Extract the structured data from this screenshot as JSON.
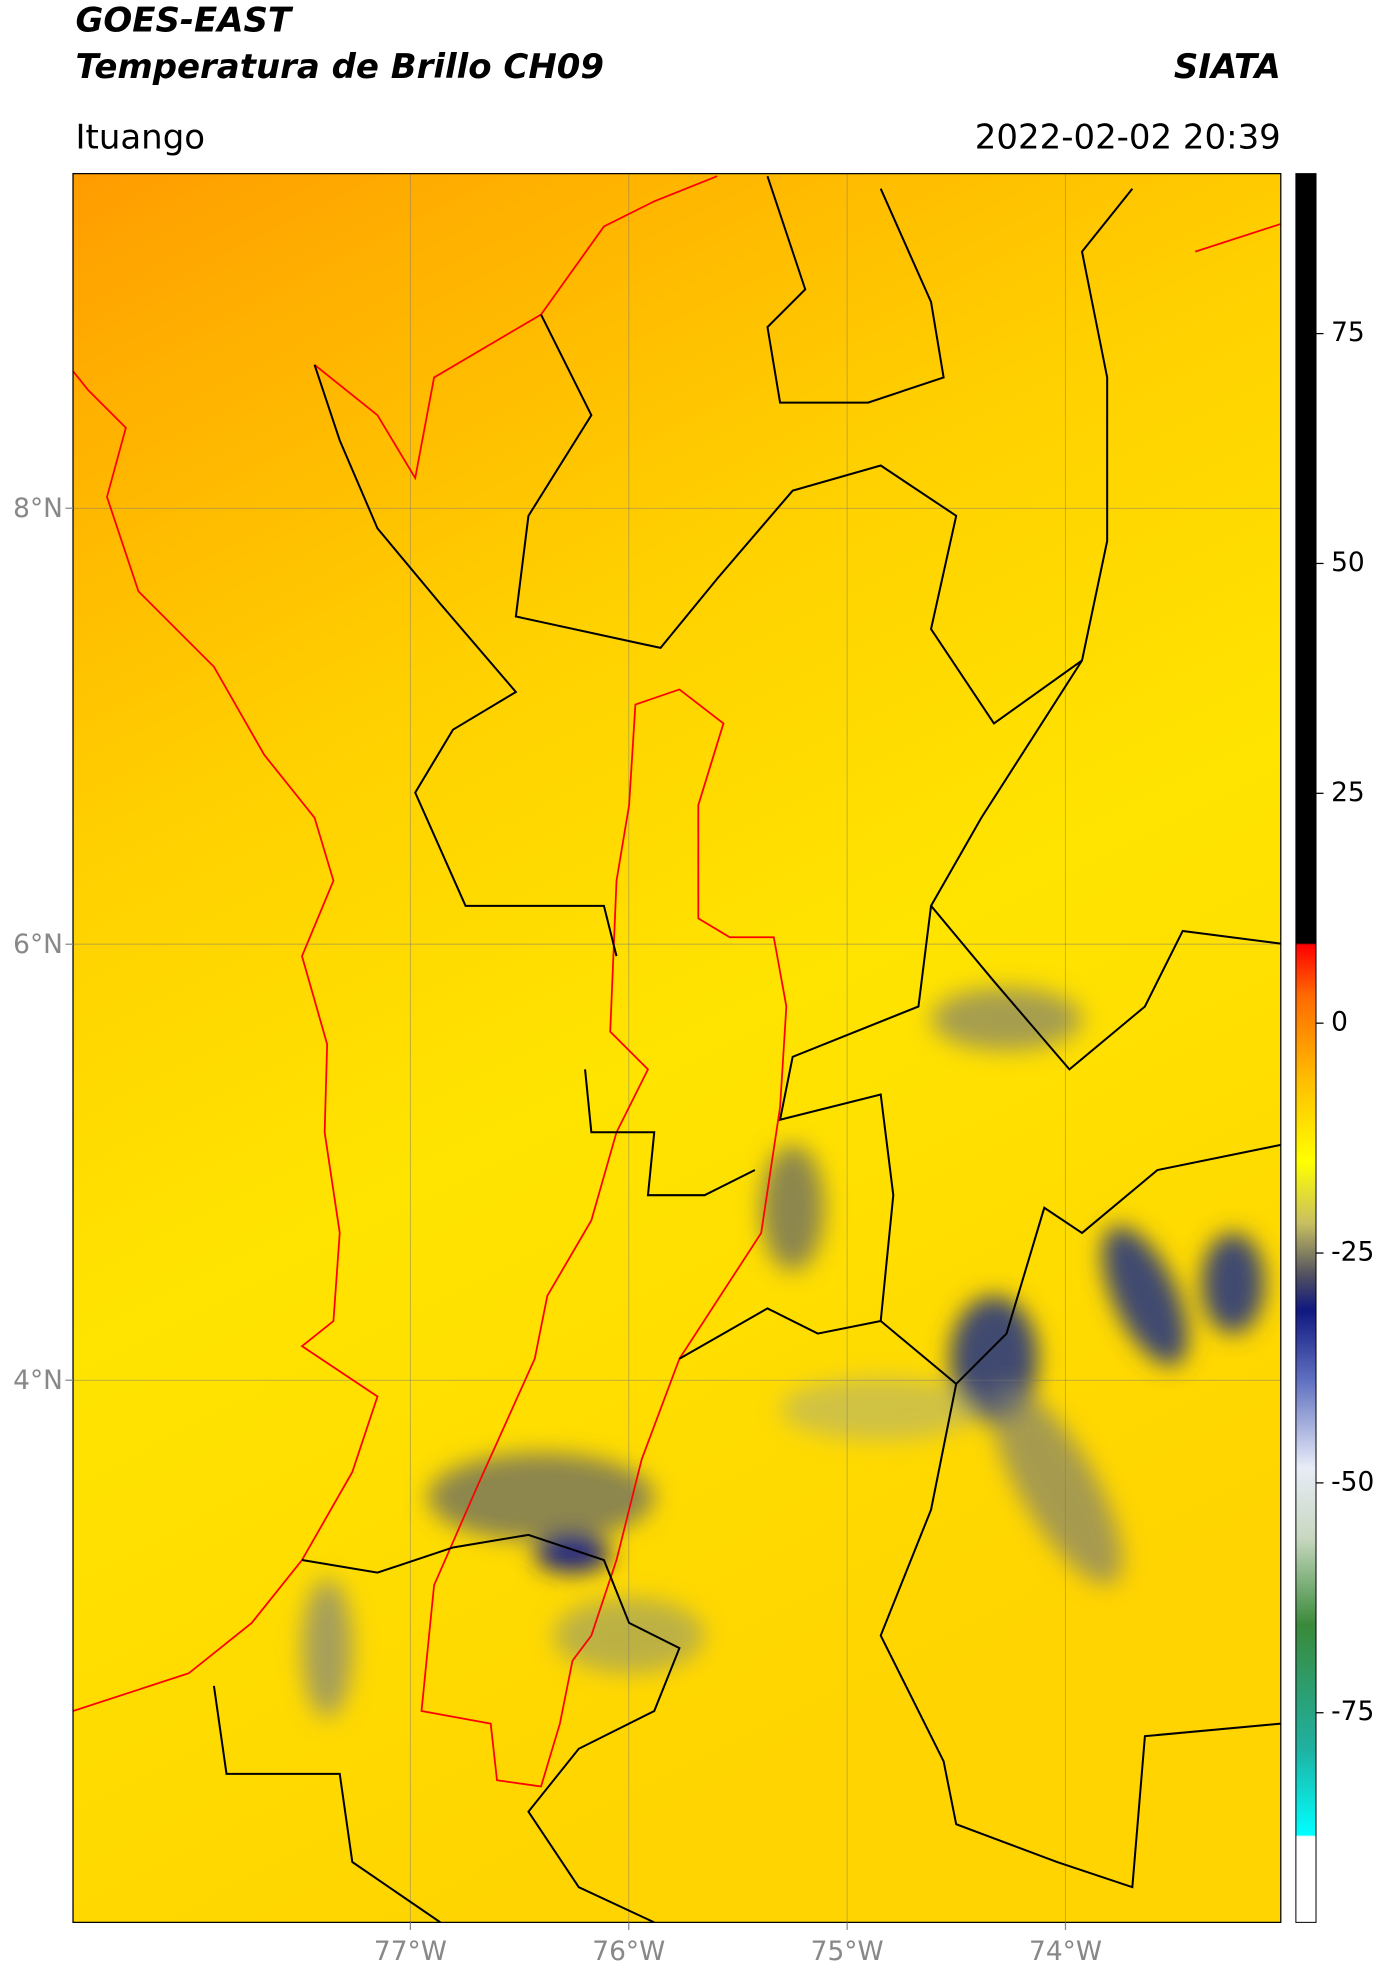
{
  "header": {
    "title": "GOES-EAST",
    "subtitle": "Temperatura de Brillo CH09",
    "brand": "SIATA",
    "location": "Ituango",
    "datetime": "2022-02-02 20:39"
  },
  "map": {
    "lonlim": [
      -78.545,
      -73.014
    ],
    "latlim": [
      1.513,
      9.535
    ],
    "lonticks": [
      {
        "value": -77,
        "label": "77°W"
      },
      {
        "value": -76,
        "label": "76°W"
      },
      {
        "value": -75,
        "label": "75°W"
      },
      {
        "value": -74,
        "label": "74°W"
      }
    ],
    "latticks": [
      {
        "value": 8,
        "label": "8°N"
      },
      {
        "value": 6,
        "label": "6°N"
      },
      {
        "value": 4,
        "label": "4°N"
      }
    ],
    "grid": true
  },
  "colorbar": {
    "lim": [
      -97.8,
      92.4
    ],
    "ticks": [
      75,
      50,
      25,
      0,
      -25,
      -50,
      -75
    ]
  }
}
